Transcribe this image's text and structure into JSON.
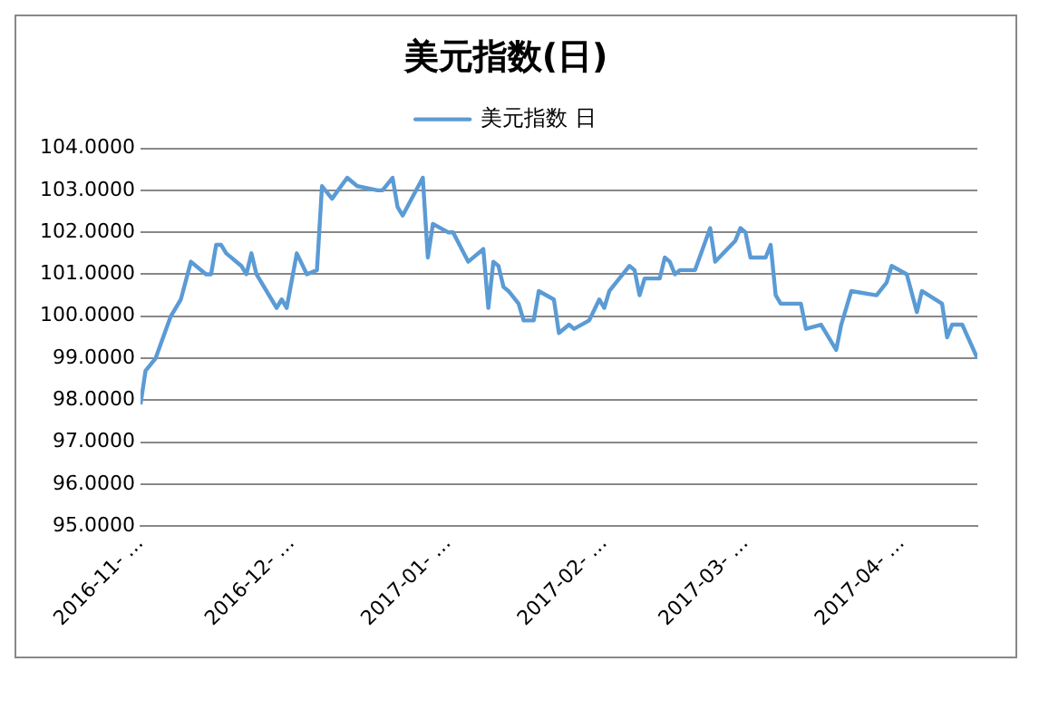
{
  "chart_data": {
    "type": "line",
    "title": "美元指数(日)",
    "x": [
      "2016-11-01",
      "2016-11-02",
      "2016-11-04",
      "2016-11-07",
      "2016-11-09",
      "2016-11-11",
      "2016-11-14",
      "2016-11-15",
      "2016-11-16",
      "2016-11-17",
      "2016-11-18",
      "2016-11-21",
      "2016-11-22",
      "2016-11-23",
      "2016-11-24",
      "2016-11-28",
      "2016-11-29",
      "2016-11-30",
      "2016-12-02",
      "2016-12-04",
      "2016-12-06",
      "2016-12-07",
      "2016-12-09",
      "2016-12-12",
      "2016-12-14",
      "2016-12-18",
      "2016-12-19",
      "2016-12-21",
      "2016-12-22",
      "2016-12-23",
      "2016-12-27",
      "2016-12-28",
      "2016-12-29",
      "2017-01-01",
      "2017-01-02",
      "2017-01-05",
      "2017-01-08",
      "2017-01-09",
      "2017-01-10",
      "2017-01-11",
      "2017-01-12",
      "2017-01-13",
      "2017-01-15",
      "2017-01-16",
      "2017-01-18",
      "2017-01-19",
      "2017-01-22",
      "2017-01-23",
      "2017-01-25",
      "2017-01-26",
      "2017-01-29",
      "2017-01-31",
      "2017-02-01",
      "2017-02-02",
      "2017-02-06",
      "2017-02-07",
      "2017-02-08",
      "2017-02-09",
      "2017-02-12",
      "2017-02-13",
      "2017-02-14",
      "2017-02-15",
      "2017-02-16",
      "2017-02-19",
      "2017-02-22",
      "2017-02-23",
      "2017-02-27",
      "2017-02-28",
      "2017-03-01",
      "2017-03-02",
      "2017-03-05",
      "2017-03-06",
      "2017-03-07",
      "2017-03-08",
      "2017-03-12",
      "2017-03-13",
      "2017-03-16",
      "2017-03-19",
      "2017-03-20",
      "2017-03-22",
      "2017-03-27",
      "2017-03-29",
      "2017-03-30",
      "2017-04-02",
      "2017-04-04",
      "2017-04-05",
      "2017-04-09",
      "2017-04-10",
      "2017-04-11",
      "2017-04-13",
      "2017-04-16"
    ],
    "series": [
      {
        "name": "美元指数 日",
        "color": "#5b9bd5",
        "values": [
          97.9,
          98.7,
          99.0,
          100.0,
          100.4,
          101.3,
          101.0,
          101.0,
          101.7,
          101.7,
          101.5,
          101.2,
          101.0,
          101.5,
          101.0,
          100.2,
          100.4,
          100.2,
          101.5,
          101.0,
          101.1,
          103.1,
          102.8,
          103.3,
          103.1,
          103.0,
          103.0,
          103.3,
          102.6,
          102.4,
          103.3,
          101.4,
          102.2,
          102.0,
          102.0,
          101.3,
          101.6,
          100.2,
          101.3,
          101.2,
          100.7,
          100.6,
          100.3,
          99.9,
          99.9,
          100.6,
          100.4,
          99.6,
          99.8,
          99.7,
          99.9,
          100.4,
          100.2,
          100.6,
          101.2,
          101.1,
          100.5,
          100.9,
          100.9,
          101.4,
          101.3,
          101.0,
          101.1,
          101.1,
          102.1,
          101.3,
          101.8,
          102.1,
          102.0,
          101.4,
          101.4,
          101.7,
          100.5,
          100.3,
          100.3,
          99.7,
          99.8,
          99.2,
          99.8,
          100.6,
          100.5,
          100.8,
          101.2,
          101.0,
          100.1,
          100.6,
          100.3,
          99.5,
          99.8,
          99.8,
          99.0
        ]
      }
    ],
    "xlim": [
      "2016-11-01",
      "2017-04-16"
    ],
    "xticks": [
      {
        "value": "2016-11-01",
        "label": "2016-11- …"
      },
      {
        "value": "2016-12-01",
        "label": "2016-12- …"
      },
      {
        "value": "2017-01-01",
        "label": "2017-01- …"
      },
      {
        "value": "2017-02-01",
        "label": "2017-02- …"
      },
      {
        "value": "2017-03-01",
        "label": "2017-03- …"
      },
      {
        "value": "2017-04-01",
        "label": "2017-04- …"
      }
    ],
    "ylim": [
      95,
      104
    ],
    "yticks": [
      {
        "value": 95,
        "label": "95.0000"
      },
      {
        "value": 96,
        "label": "96.0000"
      },
      {
        "value": 97,
        "label": "97.0000"
      },
      {
        "value": 98,
        "label": "98.0000"
      },
      {
        "value": 99,
        "label": "99.0000"
      },
      {
        "value": 100,
        "label": "100.0000"
      },
      {
        "value": 101,
        "label": "101.0000"
      },
      {
        "value": 102,
        "label": "102.0000"
      },
      {
        "value": 103,
        "label": "103.0000"
      },
      {
        "value": 104,
        "label": "104.0000"
      }
    ],
    "grid": "y",
    "legend": "top",
    "marker": "none",
    "line_style": "solid"
  }
}
